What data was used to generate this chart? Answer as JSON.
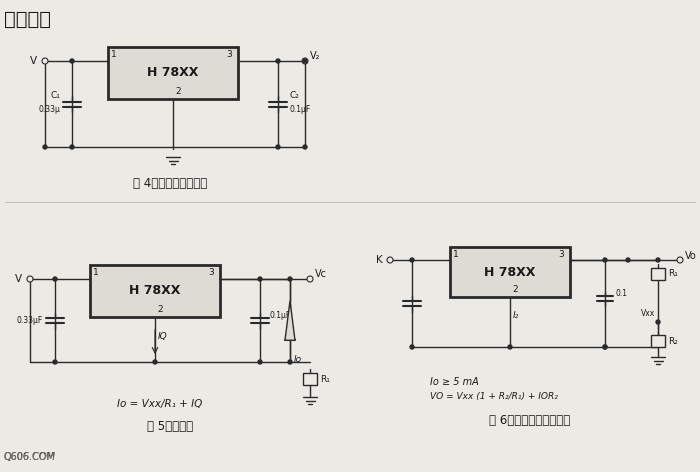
{
  "title": "应用电路",
  "background_color": "#e8e5e0",
  "fig4_label": "图 4、固定输出稳压器",
  "fig5_label": "图 5、恒流源",
  "fig6_label": "图 6、提高输出电压电路",
  "fig5_formula": "Io = Vxx/R₁ + IQ",
  "fig6_formula1": "Io ≥ 5 mA",
  "fig6_formula2": "VO = Vxx (1 + R₂/R₁) + IOR₂",
  "ic_label": "H 78XX",
  "watermark": "Q606.COM",
  "line_color": "#2a2a2a",
  "box_fill": "#dedad4",
  "text_color": "#1a1a1a",
  "bg": "#eceae5"
}
